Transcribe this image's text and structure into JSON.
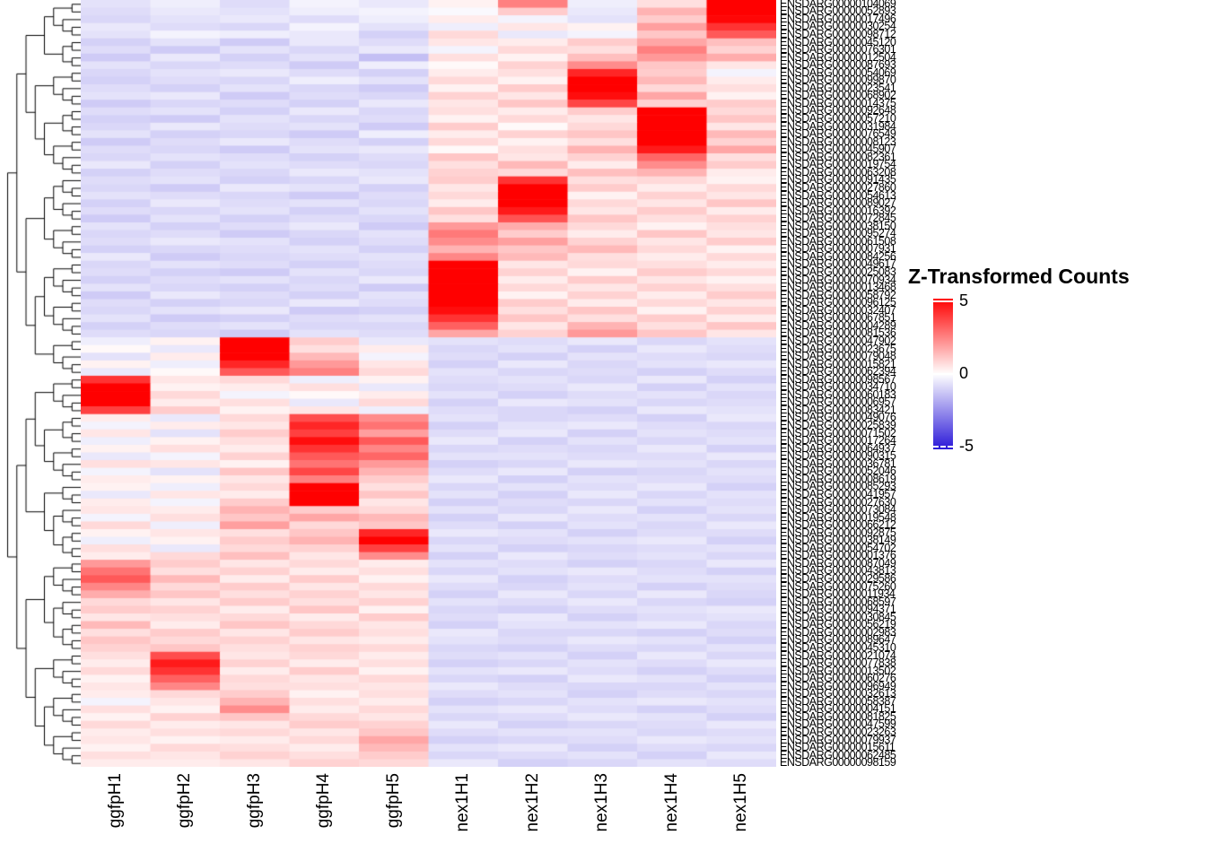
{
  "legend": {
    "title": "Z-Transformed Counts",
    "ticks": [
      "5",
      "0",
      "-5"
    ],
    "tick_values": [
      5,
      0,
      -5
    ],
    "high_color": "#FF0000",
    "mid_color": "#FFFFFF",
    "low_color": "#2A18D8"
  },
  "chart_data": {
    "type": "heatmap",
    "title": "",
    "legend_title": "Z-Transformed Counts",
    "value_range": [
      -5,
      5
    ],
    "color_clip": 4,
    "color_scale": {
      "low": "#2A18D8",
      "mid": "#FFFFFF",
      "high": "#FF0000"
    },
    "row_dendrogram": true,
    "legend_position": "right",
    "columns": [
      "ggfpH1",
      "ggfpH2",
      "ggfpH3",
      "ggfpH4",
      "ggfpH5",
      "nex1H1",
      "nex1H2",
      "nex1H3",
      "nex1H4",
      "nex1H5"
    ],
    "row_label_prefix": "ENSDARG00000",
    "row_label_suffixes": [
      "104069",
      "052893",
      "017496",
      "030254",
      "098712",
      "045120",
      "076301",
      "012504",
      "087693",
      "054069",
      "099870",
      "023541",
      "068902",
      "014375",
      "092648",
      "057210",
      "031984",
      "076549",
      "008123",
      "045907",
      "082361",
      "019754",
      "063208",
      "091435",
      "027860",
      "054613",
      "089027",
      "016392",
      "072845",
      "038150",
      "095274",
      "061508",
      "007931",
      "084256",
      "049617",
      "025083",
      "070934",
      "013468",
      "058792",
      "096125",
      "032407",
      "067851",
      "004289",
      "081536",
      "047902",
      "023675",
      "079048",
      "015821",
      "062394",
      "098567",
      "034710",
      "060183",
      "006957",
      "083421",
      "049076",
      "025839",
      "071502",
      "017264",
      "064937",
      "090315",
      "036781",
      "052046",
      "008619",
      "085293",
      "041957",
      "027630",
      "073084",
      "019548",
      "066212",
      "092875",
      "038149",
      "054702",
      "001376",
      "087049",
      "043813",
      "029586",
      "075260",
      "011934",
      "068597",
      "094371",
      "030845",
      "056219",
      "002983",
      "089647",
      "045310",
      "021074",
      "077838",
      "013502",
      "060276",
      "096949",
      "032613",
      "058387",
      "004151",
      "081825",
      "047599",
      "023263",
      "079937",
      "015611",
      "062485",
      "098159"
    ],
    "values": [
      [
        -0.5,
        -0.3,
        -0.6,
        -0.2,
        -0.4,
        0.2,
        2.0,
        -0.3,
        0.5,
        4.6
      ],
      [
        -0.6,
        -0.4,
        -0.5,
        -0.3,
        -0.2,
        -0.1,
        0.8,
        -0.4,
        1.2,
        4.8
      ],
      [
        -0.7,
        -0.5,
        -0.4,
        -0.6,
        -0.3,
        0.3,
        -0.2,
        -0.5,
        0.8,
        3.9
      ],
      [
        -0.4,
        -0.6,
        -0.7,
        -0.2,
        -0.5,
        -0.3,
        0.4,
        0.2,
        1.5,
        3.2
      ],
      [
        -0.5,
        -0.2,
        -0.3,
        -0.4,
        -0.8,
        0.6,
        -0.4,
        -0.2,
        0.9,
        2.6
      ],
      [
        -0.8,
        -0.5,
        -0.9,
        -0.4,
        -0.6,
        0.4,
        0.3,
        0.8,
        1.4,
        1.0
      ],
      [
        -0.6,
        -0.9,
        -0.5,
        -0.7,
        -0.4,
        -0.2,
        0.6,
        0.5,
        2.0,
        0.7
      ],
      [
        -0.9,
        -0.4,
        -0.8,
        -0.5,
        -1.1,
        0.5,
        0.2,
        1.0,
        1.6,
        1.3
      ],
      [
        -0.5,
        -0.7,
        -0.6,
        -0.9,
        -0.3,
        0.1,
        0.7,
        1.8,
        0.9,
        0.4
      ],
      [
        -0.7,
        -0.5,
        -0.4,
        -0.6,
        -0.8,
        0.3,
        0.5,
        3.4,
        0.8,
        -0.2
      ],
      [
        -0.8,
        -0.6,
        -0.7,
        -0.3,
        -0.5,
        0.6,
        0.2,
        4.6,
        1.1,
        0.3
      ],
      [
        -0.6,
        -0.8,
        -0.5,
        -0.7,
        -0.9,
        0.2,
        0.8,
        4.8,
        0.6,
        0.5
      ],
      [
        -0.5,
        -0.4,
        -0.9,
        -0.6,
        -0.7,
        0.7,
        0.4,
        3.8,
        1.4,
        0.2
      ],
      [
        -0.9,
        -0.7,
        -0.6,
        -0.8,
        -0.4,
        0.4,
        0.9,
        2.9,
        0.7,
        0.8
      ],
      [
        -0.6,
        -0.5,
        -0.8,
        -0.4,
        -0.7,
        0.5,
        0.3,
        0.8,
        4.7,
        0.6
      ],
      [
        -0.8,
        -0.9,
        -0.5,
        -0.7,
        -0.6,
        0.2,
        0.6,
        0.4,
        4.9,
        0.9
      ],
      [
        -0.7,
        -0.4,
        -0.6,
        -0.5,
        -0.9,
        0.8,
        0.1,
        0.6,
        5.0,
        0.4
      ],
      [
        -0.5,
        -0.8,
        -0.7,
        -0.9,
        -0.3,
        0.3,
        0.7,
        0.9,
        4.5,
        1.1
      ],
      [
        -0.9,
        -0.6,
        -0.4,
        -0.6,
        -0.8,
        0.6,
        0.2,
        0.5,
        4.2,
        0.7
      ],
      [
        -0.6,
        -0.7,
        -0.9,
        -0.5,
        -0.4,
        0.1,
        0.5,
        1.2,
        3.6,
        1.4
      ],
      [
        -0.7,
        -0.5,
        -0.6,
        -0.8,
        -0.6,
        0.9,
        0.4,
        0.7,
        2.4,
        0.5
      ],
      [
        -0.4,
        -0.8,
        -0.5,
        -0.6,
        -0.7,
        0.5,
        1.1,
        0.3,
        1.8,
        0.8
      ],
      [
        -0.8,
        -0.6,
        -0.7,
        -0.4,
        -0.5,
        0.7,
        0.6,
        1.0,
        1.2,
        0.3
      ],
      [
        -0.6,
        -0.5,
        -0.8,
        -0.7,
        -0.4,
        0.8,
        3.2,
        0.5,
        0.6,
        0.2
      ],
      [
        -0.7,
        -0.9,
        -0.4,
        -0.5,
        -0.8,
        0.4,
        4.7,
        0.8,
        0.3,
        0.6
      ],
      [
        -0.5,
        -0.6,
        -0.7,
        -0.9,
        -0.6,
        0.6,
        4.9,
        0.2,
        0.7,
        0.4
      ],
      [
        -0.8,
        -0.4,
        -0.6,
        -0.5,
        -0.7,
        0.3,
        4.4,
        0.6,
        0.4,
        0.9
      ],
      [
        -0.6,
        -0.7,
        -0.5,
        -0.8,
        -0.5,
        0.9,
        3.6,
        0.4,
        0.8,
        0.3
      ],
      [
        -0.9,
        -0.5,
        -0.8,
        -0.6,
        -0.7,
        0.5,
        2.7,
        0.9,
        0.5,
        0.7
      ],
      [
        -0.5,
        -0.8,
        -0.6,
        -0.4,
        -0.9,
        1.6,
        1.3,
        0.6,
        0.2,
        0.5
      ],
      [
        -0.7,
        -0.6,
        -0.9,
        -0.7,
        -0.5,
        2.1,
        0.8,
        0.3,
        0.9,
        0.4
      ],
      [
        -0.6,
        -0.4,
        -0.5,
        -0.8,
        -0.6,
        1.8,
        1.5,
        0.7,
        0.4,
        0.8
      ],
      [
        -0.8,
        -0.7,
        -0.6,
        -0.5,
        -0.8,
        1.2,
        0.9,
        1.1,
        0.6,
        0.2
      ],
      [
        -0.4,
        -0.9,
        -0.7,
        -0.6,
        -0.5,
        1.9,
        1.1,
        0.5,
        0.3,
        0.6
      ],
      [
        -0.7,
        -0.5,
        -0.6,
        -0.8,
        -0.6,
        4.8,
        0.4,
        0.6,
        0.5,
        0.3
      ],
      [
        -0.6,
        -0.8,
        -0.9,
        -0.5,
        -0.7,
        5.0,
        0.7,
        0.2,
        0.8,
        0.6
      ],
      [
        -0.8,
        -0.6,
        -0.5,
        -0.7,
        -0.4,
        4.9,
        0.3,
        0.8,
        0.4,
        0.2
      ],
      [
        -0.5,
        -0.7,
        -0.8,
        -0.6,
        -0.9,
        4.7,
        0.6,
        0.4,
        0.7,
        0.5
      ],
      [
        -0.9,
        -0.4,
        -0.6,
        -0.8,
        -0.5,
        4.6,
        0.2,
        0.7,
        0.3,
        0.8
      ],
      [
        -0.6,
        -0.8,
        -0.7,
        -0.4,
        -0.6,
        4.4,
        0.8,
        0.3,
        0.6,
        0.4
      ],
      [
        -0.7,
        -0.5,
        -0.4,
        -0.9,
        -0.8,
        3.8,
        0.5,
        0.9,
        0.2,
        0.7
      ],
      [
        -0.5,
        -0.9,
        -0.8,
        -0.6,
        -0.5,
        3.2,
        0.9,
        0.5,
        0.8,
        0.3
      ],
      [
        -0.8,
        -0.6,
        -0.5,
        -0.7,
        -0.7,
        2.5,
        0.4,
        1.2,
        0.5,
        0.9
      ],
      [
        -0.6,
        -0.7,
        -0.9,
        -0.5,
        -0.6,
        1.4,
        0.7,
        1.6,
        0.9,
        0.4
      ],
      [
        -0.3,
        0.2,
        4.6,
        0.8,
        -0.4,
        -0.5,
        -0.6,
        -0.4,
        -0.7,
        -0.5
      ],
      [
        0.1,
        -0.4,
        4.9,
        0.5,
        0.3,
        -0.7,
        -0.5,
        -0.8,
        -0.4,
        -0.6
      ],
      [
        -0.5,
        0.3,
        4.2,
        1.1,
        -0.2,
        -0.6,
        -0.8,
        -0.5,
        -0.6,
        -0.7
      ],
      [
        0.2,
        -0.3,
        3.4,
        1.6,
        0.4,
        -0.8,
        -0.4,
        -0.7,
        -0.5,
        -0.4
      ],
      [
        -0.4,
        0.1,
        2.6,
        2.0,
        0.6,
        -0.5,
        -0.7,
        -0.6,
        -0.8,
        -0.6
      ],
      [
        3.2,
        0.4,
        0.6,
        -0.3,
        0.2,
        -0.6,
        -0.5,
        -0.7,
        -0.4,
        -0.8
      ],
      [
        4.8,
        0.2,
        0.3,
        0.5,
        -0.4,
        -0.7,
        -0.6,
        -0.4,
        -0.8,
        -0.5
      ],
      [
        5.0,
        0.6,
        -0.2,
        0.1,
        0.3,
        -0.5,
        -0.8,
        -0.6,
        -0.5,
        -0.7
      ],
      [
        4.4,
        0.3,
        0.5,
        -0.4,
        0.6,
        -0.8,
        -0.4,
        -0.5,
        -0.7,
        -0.6
      ],
      [
        3.0,
        0.8,
        0.2,
        0.4,
        -0.3,
        -0.6,
        -0.7,
        -0.8,
        -0.4,
        -0.5
      ],
      [
        0.3,
        -0.4,
        0.6,
        2.8,
        1.8,
        -0.5,
        -0.7,
        -0.6,
        -0.8,
        -0.4
      ],
      [
        -0.2,
        0.3,
        0.4,
        3.4,
        2.2,
        -0.8,
        -0.5,
        -0.4,
        -0.6,
        -0.7
      ],
      [
        0.4,
        -0.5,
        0.8,
        3.0,
        1.5,
        -0.6,
        -0.4,
        -0.8,
        -0.5,
        -0.6
      ],
      [
        -0.3,
        0.2,
        0.5,
        3.8,
        2.6,
        -0.4,
        -0.8,
        -0.5,
        -0.7,
        -0.5
      ],
      [
        0.2,
        0.5,
        0.3,
        3.2,
        1.9,
        -0.7,
        -0.6,
        -0.7,
        -0.4,
        -0.8
      ],
      [
        -0.4,
        -0.2,
        0.7,
        2.6,
        2.4,
        -0.5,
        -0.5,
        -0.6,
        -0.6,
        -0.4
      ],
      [
        0.5,
        0.4,
        0.2,
        2.2,
        1.6,
        -0.8,
        -0.7,
        -0.4,
        -0.5,
        -0.7
      ],
      [
        -0.2,
        -0.5,
        0.9,
        2.9,
        1.2,
        -0.6,
        -0.4,
        -0.8,
        -0.7,
        -0.5
      ],
      [
        0.3,
        0.2,
        0.4,
        2.0,
        0.8,
        -0.4,
        -0.8,
        -0.5,
        -0.6,
        -0.6
      ],
      [
        0.2,
        -0.3,
        0.6,
        4.7,
        0.5,
        -0.7,
        -0.5,
        -0.6,
        -0.4,
        -0.8
      ],
      [
        -0.4,
        0.4,
        0.3,
        5.0,
        0.9,
        -0.5,
        -0.8,
        -0.4,
        -0.7,
        -0.5
      ],
      [
        0.3,
        -0.2,
        0.8,
        4.3,
        0.4,
        -0.8,
        -0.6,
        -0.7,
        -0.5,
        -0.6
      ],
      [
        0.4,
        0.3,
        1.2,
        0.8,
        0.6,
        -0.5,
        -0.7,
        -0.4,
        -0.8,
        -0.5
      ],
      [
        -0.2,
        0.5,
        0.9,
        1.4,
        1.1,
        -0.8,
        -0.4,
        -0.6,
        -0.5,
        -0.7
      ],
      [
        0.6,
        -0.3,
        1.5,
        0.6,
        0.9,
        -0.6,
        -0.8,
        -0.5,
        -0.7,
        -0.4
      ],
      [
        0.2,
        0.4,
        0.5,
        0.9,
        3.4,
        -0.4,
        -0.5,
        -0.8,
        -0.6,
        -0.6
      ],
      [
        -0.3,
        0.2,
        0.8,
        1.2,
        4.2,
        -0.7,
        -0.6,
        -0.5,
        -0.4,
        -0.8
      ],
      [
        0.5,
        -0.4,
        0.6,
        0.7,
        3.0,
        -0.5,
        -0.8,
        -0.7,
        -0.6,
        -0.5
      ],
      [
        0.3,
        0.6,
        1.0,
        0.4,
        1.8,
        -0.8,
        -0.4,
        -0.6,
        -0.5,
        -0.7
      ],
      [
        1.6,
        0.8,
        0.4,
        0.6,
        0.3,
        -0.5,
        -0.6,
        -0.8,
        -0.7,
        -0.4
      ],
      [
        2.2,
        0.5,
        0.7,
        0.3,
        0.5,
        -0.7,
        -0.5,
        -0.4,
        -0.6,
        -0.8
      ],
      [
        2.6,
        1.1,
        0.3,
        0.8,
        0.2,
        -0.4,
        -0.8,
        -0.6,
        -0.5,
        -0.5
      ],
      [
        1.9,
        0.6,
        0.8,
        0.4,
        0.6,
        -0.6,
        -0.7,
        -0.5,
        -0.8,
        -0.6
      ],
      [
        1.3,
        0.9,
        0.5,
        0.7,
        0.4,
        -0.8,
        -0.4,
        -0.7,
        -0.4,
        -0.7
      ],
      [
        0.6,
        0.4,
        0.8,
        0.5,
        0.7,
        -0.5,
        -0.6,
        -0.4,
        -0.7,
        -0.8
      ],
      [
        0.8,
        0.7,
        0.3,
        0.9,
        0.2,
        -0.7,
        -0.8,
        -0.6,
        -0.5,
        -0.4
      ],
      [
        0.4,
        0.5,
        0.6,
        0.3,
        0.8,
        -0.6,
        -0.4,
        -0.8,
        -0.6,
        -0.5
      ],
      [
        1.1,
        0.3,
        0.9,
        0.6,
        0.4,
        -0.8,
        -0.5,
        -0.5,
        -0.4,
        -0.7
      ],
      [
        0.5,
        0.8,
        0.4,
        0.8,
        0.5,
        -0.4,
        -0.7,
        -0.7,
        -0.8,
        -0.6
      ],
      [
        0.9,
        0.6,
        0.7,
        0.4,
        0.3,
        -0.5,
        -0.6,
        -0.4,
        -0.5,
        -0.8
      ],
      [
        0.7,
        0.9,
        0.5,
        0.7,
        0.6,
        -0.7,
        -0.8,
        -0.6,
        -0.7,
        -0.5
      ],
      [
        0.5,
        2.8,
        0.4,
        0.6,
        0.3,
        -0.6,
        -0.5,
        -0.8,
        -0.4,
        -0.7
      ],
      [
        0.3,
        3.6,
        0.7,
        0.3,
        0.5,
        -0.8,
        -0.7,
        -0.5,
        -0.6,
        -0.4
      ],
      [
        0.6,
        3.2,
        0.3,
        0.8,
        0.2,
        -0.5,
        -0.4,
        -0.6,
        -0.8,
        -0.6
      ],
      [
        0.2,
        2.5,
        0.6,
        0.4,
        0.6,
        -0.7,
        -0.8,
        -0.4,
        -0.5,
        -0.8
      ],
      [
        0.4,
        1.9,
        0.5,
        0.5,
        0.4,
        -0.4,
        -0.6,
        -0.7,
        -0.7,
        -0.5
      ],
      [
        0.3,
        0.6,
        0.8,
        0.2,
        0.5,
        -0.6,
        -0.5,
        -0.8,
        -0.6,
        -0.7
      ],
      [
        -0.2,
        0.4,
        1.2,
        0.5,
        0.3,
        -0.8,
        -0.7,
        -0.5,
        -0.4,
        -0.5
      ],
      [
        0.5,
        0.2,
        1.8,
        0.3,
        0.6,
        -0.5,
        -0.4,
        -0.6,
        -0.8,
        -0.6
      ],
      [
        0.2,
        0.7,
        0.9,
        0.6,
        0.4,
        -0.7,
        -0.6,
        -0.4,
        -0.5,
        -0.8
      ],
      [
        0.6,
        0.3,
        0.4,
        0.8,
        0.7,
        -0.4,
        -0.8,
        -0.7,
        -0.6,
        -0.4
      ],
      [
        0.3,
        0.5,
        0.6,
        0.4,
        0.9,
        -0.6,
        -0.5,
        -0.5,
        -0.7,
        -0.6
      ],
      [
        0.4,
        0.2,
        0.3,
        0.6,
        1.4,
        -0.8,
        -0.7,
        -0.6,
        -0.4,
        -0.5
      ],
      [
        0.2,
        0.6,
        0.5,
        0.3,
        1.1,
        -0.5,
        -0.4,
        -0.8,
        -0.6,
        -0.7
      ],
      [
        0.5,
        0.4,
        0.7,
        0.5,
        0.8,
        -0.7,
        -0.6,
        -0.5,
        -0.8,
        -0.4
      ],
      [
        0.3,
        0.3,
        0.4,
        0.7,
        0.6,
        -0.4,
        -0.8,
        -0.7,
        -0.5,
        -0.6
      ]
    ]
  }
}
